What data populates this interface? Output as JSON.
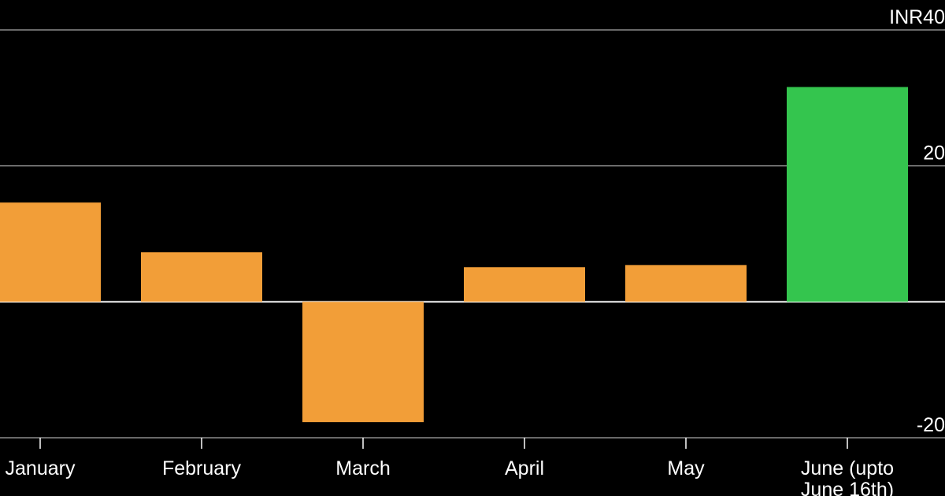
{
  "chart_data": {
    "type": "bar",
    "categories": [
      "January",
      "February",
      "March",
      "April",
      "May",
      "June (upto June 16th)"
    ],
    "values": [
      14.6,
      7.3,
      -17.7,
      5.1,
      5.4,
      31.6
    ],
    "bar_colors": [
      "#f29e38",
      "#f29e38",
      "#f29e38",
      "#f29e38",
      "#f29e38",
      "#34c54e"
    ],
    "y_ticks": [
      {
        "value": 40,
        "label": "INR40"
      },
      {
        "value": 20,
        "label": "20"
      },
      {
        "value": -20,
        "label": "-20"
      }
    ],
    "ylim": [
      -20,
      40
    ],
    "grid": true,
    "colors": {
      "background": "#000000",
      "gridline": "#8c8c8c",
      "zero_line": "#ffffff",
      "text": "#ffffff"
    }
  }
}
